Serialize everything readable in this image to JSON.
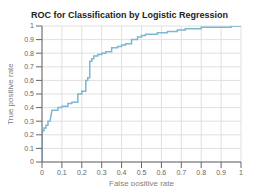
{
  "chart_data": {
    "type": "line",
    "title": "ROC for Classification by Logistic Regression",
    "xlabel": "False positive rate",
    "ylabel": "True positive rate",
    "xlim": [
      0,
      1
    ],
    "ylim": [
      0,
      1
    ],
    "xticks": [
      0,
      0.1,
      0.2,
      0.3,
      0.4,
      0.5,
      0.6,
      0.7,
      0.8,
      0.9,
      1
    ],
    "yticks": [
      0,
      0.1,
      0.2,
      0.3,
      0.4,
      0.5,
      0.6,
      0.7,
      0.8,
      0.9,
      1
    ],
    "color": "#7ab8d4",
    "grid": true,
    "x": [
      0.0,
      0.0,
      0.01,
      0.01,
      0.02,
      0.02,
      0.03,
      0.03,
      0.04,
      0.05,
      0.05,
      0.08,
      0.08,
      0.1,
      0.1,
      0.13,
      0.13,
      0.15,
      0.15,
      0.18,
      0.18,
      0.2,
      0.2,
      0.22,
      0.22,
      0.23,
      0.23,
      0.24,
      0.24,
      0.25,
      0.25,
      0.26,
      0.26,
      0.28,
      0.28,
      0.3,
      0.3,
      0.32,
      0.32,
      0.35,
      0.35,
      0.38,
      0.38,
      0.4,
      0.4,
      0.42,
      0.42,
      0.45,
      0.45,
      0.48,
      0.48,
      0.5,
      0.5,
      0.52,
      0.52,
      0.55,
      0.55,
      0.58,
      0.58,
      0.6,
      0.6,
      0.63,
      0.63,
      0.65,
      0.65,
      0.68,
      0.68,
      0.7,
      0.7,
      0.72,
      0.72,
      0.75,
      0.75,
      0.78,
      0.78,
      0.8,
      0.8,
      0.85,
      0.85,
      0.9,
      0.9,
      0.95,
      0.95,
      0.97,
      0.97,
      1.0
    ],
    "values": [
      0.0,
      0.23,
      0.23,
      0.25,
      0.25,
      0.27,
      0.27,
      0.3,
      0.3,
      0.38,
      0.38,
      0.38,
      0.4,
      0.4,
      0.41,
      0.41,
      0.43,
      0.43,
      0.44,
      0.44,
      0.5,
      0.5,
      0.52,
      0.52,
      0.6,
      0.6,
      0.62,
      0.62,
      0.74,
      0.74,
      0.76,
      0.76,
      0.78,
      0.78,
      0.79,
      0.79,
      0.8,
      0.8,
      0.81,
      0.81,
      0.84,
      0.84,
      0.85,
      0.85,
      0.86,
      0.86,
      0.87,
      0.87,
      0.9,
      0.9,
      0.92,
      0.92,
      0.93,
      0.93,
      0.94,
      0.94,
      0.94,
      0.94,
      0.95,
      0.95,
      0.95,
      0.95,
      0.96,
      0.96,
      0.96,
      0.96,
      0.97,
      0.97,
      0.97,
      0.97,
      0.98,
      0.98,
      0.98,
      0.98,
      0.98,
      0.98,
      0.99,
      0.99,
      0.99,
      0.99,
      0.99,
      0.99,
      1.0,
      1.0,
      1.0,
      1.0
    ]
  }
}
